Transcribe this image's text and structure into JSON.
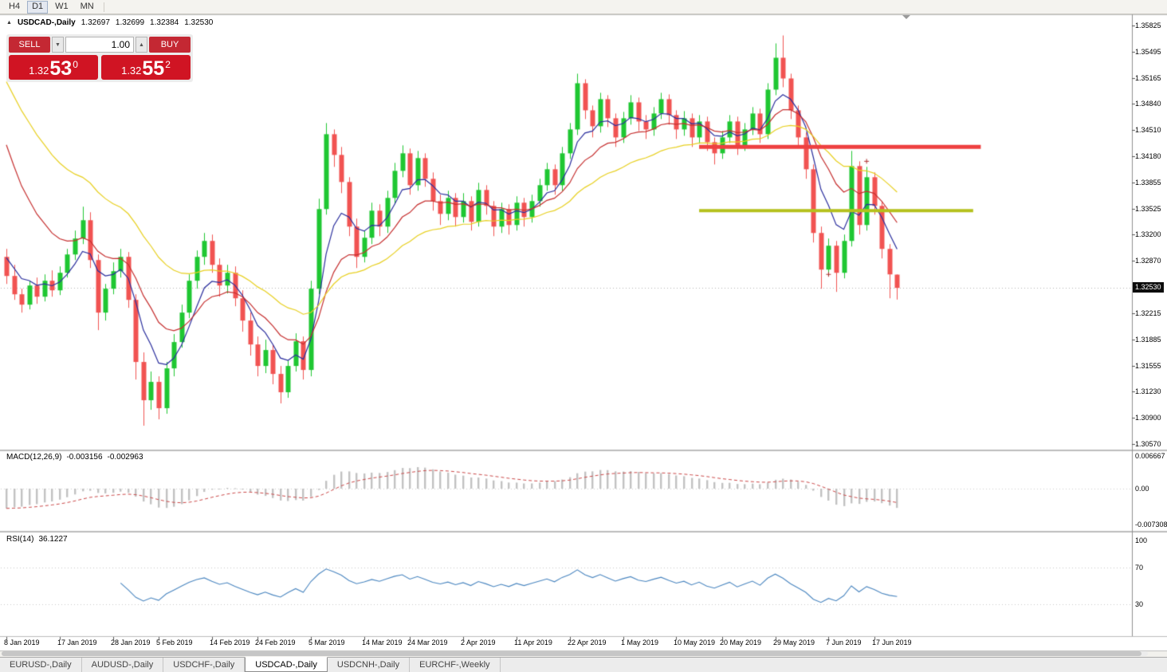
{
  "menubar": {
    "buttons": [
      "H4",
      "D1",
      "W1",
      "MN"
    ],
    "active": "D1"
  },
  "chart_header": {
    "collapse_icon": "▲",
    "symbol_label": "USDCAD-,Daily",
    "open": "1.32697",
    "high": "1.32699",
    "low": "1.32384",
    "close": "1.32530"
  },
  "trade_panel": {
    "sell_label": "SELL",
    "buy_label": "BUY",
    "volume": "1.00",
    "sell_price_prefix": "1.32",
    "sell_price_big": "53",
    "sell_price_sup": "0",
    "buy_price_prefix": "1.32",
    "buy_price_big": "55",
    "buy_price_sup": "2"
  },
  "macd": {
    "name": "MACD(12,26,9)",
    "value_main": "-0.003156",
    "value_signal": "-0.002963",
    "axis_labels": [
      "0.006667",
      "0.00",
      "-0.007308"
    ],
    "axis_values": [
      0.006667,
      0,
      -0.007308
    ]
  },
  "rsi": {
    "name": "RSI(14)",
    "value": "36.1227",
    "axis_labels": [
      "100",
      "70",
      "30"
    ],
    "levels": [
      70,
      30
    ]
  },
  "price_axis": {
    "labels": [
      "1.35825",
      "1.35495",
      "1.35165",
      "1.34840",
      "1.34510",
      "1.34180",
      "1.33855",
      "1.33525",
      "1.33200",
      "1.32870",
      "1.32215",
      "1.31885",
      "1.31555",
      "1.31230",
      "1.30900",
      "1.30570"
    ],
    "current": {
      "text": "1.32530",
      "price": 1.3253
    }
  },
  "date_axis": [
    {
      "text": "8 Jan 2019",
      "index": 0
    },
    {
      "text": "17 Jan 2019",
      "index": 7
    },
    {
      "text": "28 Jan 2019",
      "index": 14
    },
    {
      "text": "5 Feb 2019",
      "index": 20
    },
    {
      "text": "14 Feb 2019",
      "index": 27
    },
    {
      "text": "24 Feb 2019",
      "index": 33
    },
    {
      "text": "5 Mar 2019",
      "index": 40
    },
    {
      "text": "14 Mar 2019",
      "index": 47
    },
    {
      "text": "24 Mar 2019",
      "index": 53
    },
    {
      "text": "2 Apr 2019",
      "index": 60
    },
    {
      "text": "11 Apr 2019",
      "index": 67
    },
    {
      "text": "22 Apr 2019",
      "index": 74
    },
    {
      "text": "1 May 2019",
      "index": 81
    },
    {
      "text": "10 May 2019",
      "index": 88
    },
    {
      "text": "20 May 2019",
      "index": 94
    },
    {
      "text": "29 May 2019",
      "index": 101
    },
    {
      "text": "7 Jun 2019",
      "index": 108
    },
    {
      "text": "17 Jun 2019",
      "index": 114
    }
  ],
  "tabs": [
    {
      "label": "EURUSD-,Daily",
      "active": false
    },
    {
      "label": "AUDUSD-,Daily",
      "active": false
    },
    {
      "label": "USDCHF-,Daily",
      "active": false
    },
    {
      "label": "USDCAD-,Daily",
      "active": true
    },
    {
      "label": "USDCNH-,Daily",
      "active": false
    },
    {
      "label": "EURCHF-,Weekly",
      "active": false
    }
  ],
  "colors": {
    "bull": "#1fc732",
    "bear": "#f15352",
    "ma_fast": "#2b2f9e",
    "ma_mid": "#c62f2f",
    "ma_slow": "#e8d020",
    "macd_hist": "#c2c2c2",
    "macd_signal": "#cc4848",
    "rsi_line": "#4a86c0",
    "hline_red": "#ee4040",
    "hline_olive": "#b5c11c",
    "current_tag_bg": "#0c0c0c"
  },
  "chart_data": {
    "type": "candlestick",
    "symbol": "USDCAD",
    "timeframe": "Daily",
    "title": "USDCAD-,Daily",
    "ohlc_current": [
      1.32697,
      1.32699,
      1.32384,
      1.3253
    ],
    "price_range": [
      1.3057,
      1.35825
    ],
    "candles": [
      [
        1.3292,
        1.3302,
        1.3258,
        1.3268
      ],
      [
        1.3268,
        1.3282,
        1.3238,
        1.3245
      ],
      [
        1.3245,
        1.3252,
        1.3222,
        1.3232
      ],
      [
        1.3232,
        1.3262,
        1.3226,
        1.3256
      ],
      [
        1.3256,
        1.3266,
        1.3233,
        1.3242
      ],
      [
        1.3242,
        1.327,
        1.3236,
        1.3262
      ],
      [
        1.3262,
        1.3275,
        1.3242,
        1.325
      ],
      [
        1.325,
        1.328,
        1.3244,
        1.3272
      ],
      [
        1.3272,
        1.3302,
        1.3266,
        1.3295
      ],
      [
        1.3295,
        1.3325,
        1.3288,
        1.3315
      ],
      [
        1.3315,
        1.3355,
        1.3308,
        1.3338
      ],
      [
        1.3338,
        1.3348,
        1.3278,
        1.3288
      ],
      [
        1.3288,
        1.3295,
        1.32,
        1.3222
      ],
      [
        1.3222,
        1.3258,
        1.3212,
        1.3252
      ],
      [
        1.3252,
        1.3285,
        1.3245,
        1.3274
      ],
      [
        1.3274,
        1.3302,
        1.3266,
        1.3292
      ],
      [
        1.3292,
        1.3298,
        1.3228,
        1.3238
      ],
      [
        1.3238,
        1.3245,
        1.3138,
        1.316
      ],
      [
        1.316,
        1.3172,
        1.308,
        1.3112
      ],
      [
        1.3112,
        1.3148,
        1.31,
        1.3135
      ],
      [
        1.3135,
        1.3142,
        1.3088,
        1.3102
      ],
      [
        1.3102,
        1.316,
        1.3095,
        1.3152
      ],
      [
        1.3152,
        1.3195,
        1.3142,
        1.3185
      ],
      [
        1.3185,
        1.3232,
        1.3178,
        1.3222
      ],
      [
        1.3222,
        1.327,
        1.3215,
        1.3262
      ],
      [
        1.3262,
        1.33,
        1.3252,
        1.3292
      ],
      [
        1.3292,
        1.3322,
        1.3282,
        1.3312
      ],
      [
        1.3312,
        1.332,
        1.3272,
        1.3282
      ],
      [
        1.3282,
        1.329,
        1.3242,
        1.3256
      ],
      [
        1.3256,
        1.3282,
        1.3246,
        1.3272
      ],
      [
        1.3272,
        1.328,
        1.323,
        1.324
      ],
      [
        1.324,
        1.325,
        1.3198,
        1.3212
      ],
      [
        1.3212,
        1.3222,
        1.3168,
        1.3182
      ],
      [
        1.3182,
        1.3192,
        1.3142,
        1.3155
      ],
      [
        1.3155,
        1.3188,
        1.3146,
        1.3175
      ],
      [
        1.3175,
        1.3182,
        1.3132,
        1.3145
      ],
      [
        1.3145,
        1.3155,
        1.3108,
        1.3122
      ],
      [
        1.3122,
        1.3162,
        1.3115,
        1.3155
      ],
      [
        1.3155,
        1.3196,
        1.3148,
        1.3186
      ],
      [
        1.3186,
        1.3192,
        1.3138,
        1.315
      ],
      [
        1.315,
        1.3262,
        1.3142,
        1.3252
      ],
      [
        1.3252,
        1.3365,
        1.3245,
        1.3352
      ],
      [
        1.3352,
        1.346,
        1.3345,
        1.3446
      ],
      [
        1.3446,
        1.3452,
        1.3405,
        1.342
      ],
      [
        1.342,
        1.343,
        1.3372,
        1.3386
      ],
      [
        1.3386,
        1.3392,
        1.3318,
        1.333
      ],
      [
        1.333,
        1.334,
        1.3278,
        1.3292
      ],
      [
        1.3292,
        1.3325,
        1.3285,
        1.3316
      ],
      [
        1.3316,
        1.336,
        1.3308,
        1.335
      ],
      [
        1.335,
        1.3358,
        1.3318,
        1.333
      ],
      [
        1.333,
        1.3375,
        1.3322,
        1.3366
      ],
      [
        1.3366,
        1.341,
        1.3358,
        1.34
      ],
      [
        1.34,
        1.3432,
        1.3392,
        1.3422
      ],
      [
        1.3422,
        1.3428,
        1.337,
        1.3382
      ],
      [
        1.3382,
        1.3425,
        1.3375,
        1.3416
      ],
      [
        1.3416,
        1.3422,
        1.338,
        1.339
      ],
      [
        1.339,
        1.3398,
        1.335,
        1.3362
      ],
      [
        1.3362,
        1.337,
        1.3332,
        1.3346
      ],
      [
        1.3346,
        1.3375,
        1.3338,
        1.3366
      ],
      [
        1.3366,
        1.3372,
        1.333,
        1.3342
      ],
      [
        1.3342,
        1.3372,
        1.3335,
        1.3362
      ],
      [
        1.3362,
        1.3368,
        1.3325,
        1.3336
      ],
      [
        1.3336,
        1.3385,
        1.333,
        1.3376
      ],
      [
        1.3376,
        1.3382,
        1.3345,
        1.3356
      ],
      [
        1.3356,
        1.3362,
        1.3318,
        1.333
      ],
      [
        1.333,
        1.336,
        1.3322,
        1.3352
      ],
      [
        1.3352,
        1.3358,
        1.332,
        1.3332
      ],
      [
        1.3332,
        1.3368,
        1.3325,
        1.336
      ],
      [
        1.336,
        1.3366,
        1.333,
        1.3342
      ],
      [
        1.3342,
        1.337,
        1.3335,
        1.3362
      ],
      [
        1.3362,
        1.339,
        1.3355,
        1.3382
      ],
      [
        1.3382,
        1.341,
        1.3375,
        1.3402
      ],
      [
        1.3402,
        1.3408,
        1.337,
        1.3382
      ],
      [
        1.3382,
        1.343,
        1.3375,
        1.3422
      ],
      [
        1.3422,
        1.346,
        1.3415,
        1.3452
      ],
      [
        1.3452,
        1.3522,
        1.3445,
        1.351
      ],
      [
        1.351,
        1.3515,
        1.3465,
        1.3476
      ],
      [
        1.3476,
        1.3482,
        1.3442,
        1.3456
      ],
      [
        1.3456,
        1.3498,
        1.3448,
        1.349
      ],
      [
        1.349,
        1.3495,
        1.3455,
        1.3466
      ],
      [
        1.3466,
        1.3472,
        1.343,
        1.3442
      ],
      [
        1.3442,
        1.3474,
        1.3435,
        1.3466
      ],
      [
        1.3466,
        1.3495,
        1.3458,
        1.3486
      ],
      [
        1.3486,
        1.3492,
        1.345,
        1.3462
      ],
      [
        1.3462,
        1.347,
        1.344,
        1.3452
      ],
      [
        1.3452,
        1.348,
        1.3444,
        1.3472
      ],
      [
        1.3472,
        1.3498,
        1.3465,
        1.349
      ],
      [
        1.349,
        1.3496,
        1.3458,
        1.347
      ],
      [
        1.347,
        1.3476,
        1.344,
        1.3452
      ],
      [
        1.3452,
        1.3475,
        1.3444,
        1.3466
      ],
      [
        1.3466,
        1.3472,
        1.343,
        1.3442
      ],
      [
        1.3442,
        1.347,
        1.3434,
        1.3462
      ],
      [
        1.3462,
        1.3468,
        1.3425,
        1.3436
      ],
      [
        1.3436,
        1.3442,
        1.3408,
        1.3422
      ],
      [
        1.3422,
        1.345,
        1.3415,
        1.3442
      ],
      [
        1.3442,
        1.347,
        1.3435,
        1.3462
      ],
      [
        1.3462,
        1.3468,
        1.342,
        1.3432
      ],
      [
        1.3432,
        1.346,
        1.3425,
        1.3452
      ],
      [
        1.3452,
        1.348,
        1.3445,
        1.3472
      ],
      [
        1.3472,
        1.3478,
        1.3435,
        1.3446
      ],
      [
        1.3446,
        1.351,
        1.344,
        1.3502
      ],
      [
        1.3502,
        1.356,
        1.3495,
        1.3542
      ],
      [
        1.3542,
        1.357,
        1.3505,
        1.3516
      ],
      [
        1.3516,
        1.3522,
        1.3465,
        1.3476
      ],
      [
        1.3476,
        1.3482,
        1.3432,
        1.3442
      ],
      [
        1.3442,
        1.3448,
        1.339,
        1.3402
      ],
      [
        1.3402,
        1.3408,
        1.331,
        1.3322
      ],
      [
        1.3322,
        1.333,
        1.3252,
        1.3276
      ],
      [
        1.3276,
        1.3315,
        1.3268,
        1.3306
      ],
      [
        1.3306,
        1.3312,
        1.3248,
        1.3272
      ],
      [
        1.3272,
        1.332,
        1.3265,
        1.3312
      ],
      [
        1.3312,
        1.3425,
        1.3305,
        1.3406
      ],
      [
        1.3406,
        1.3412,
        1.332,
        1.3332
      ],
      [
        1.3332,
        1.3405,
        1.3325,
        1.3392
      ],
      [
        1.3392,
        1.3398,
        1.3345,
        1.3356
      ],
      [
        1.3356,
        1.3362,
        1.329,
        1.3302
      ],
      [
        1.3302,
        1.3308,
        1.324,
        1.327
      ],
      [
        1.32697,
        1.32699,
        1.32384,
        1.3253
      ]
    ],
    "moving_averages": [
      {
        "period": 6,
        "seed": 1.33,
        "color": "#2b2f9e"
      },
      {
        "period": 13,
        "seed": 1.346,
        "color": "#c62f2f"
      },
      {
        "period": 28,
        "seed": 1.353,
        "color": "#e8d020"
      }
    ],
    "macd_settings": {
      "fast": 12,
      "slow": 26,
      "signal": 9,
      "seed_fast": 1.325,
      "seed_slow": 1.3295
    },
    "rsi_settings": {
      "period": 14
    },
    "hlines": [
      {
        "price": 1.343,
        "color": "#ee4040",
        "width": 5,
        "from_index": 91,
        "to_index": 128
      },
      {
        "price": 1.335,
        "color": "#b5c11c",
        "width": 4,
        "from_index": 91,
        "to_index": 127
      }
    ],
    "markers": [
      {
        "index": 108,
        "price": 1.327
      },
      {
        "index": 113,
        "price": 1.3412
      }
    ],
    "current_price": {
      "price": 1.3253
    }
  }
}
